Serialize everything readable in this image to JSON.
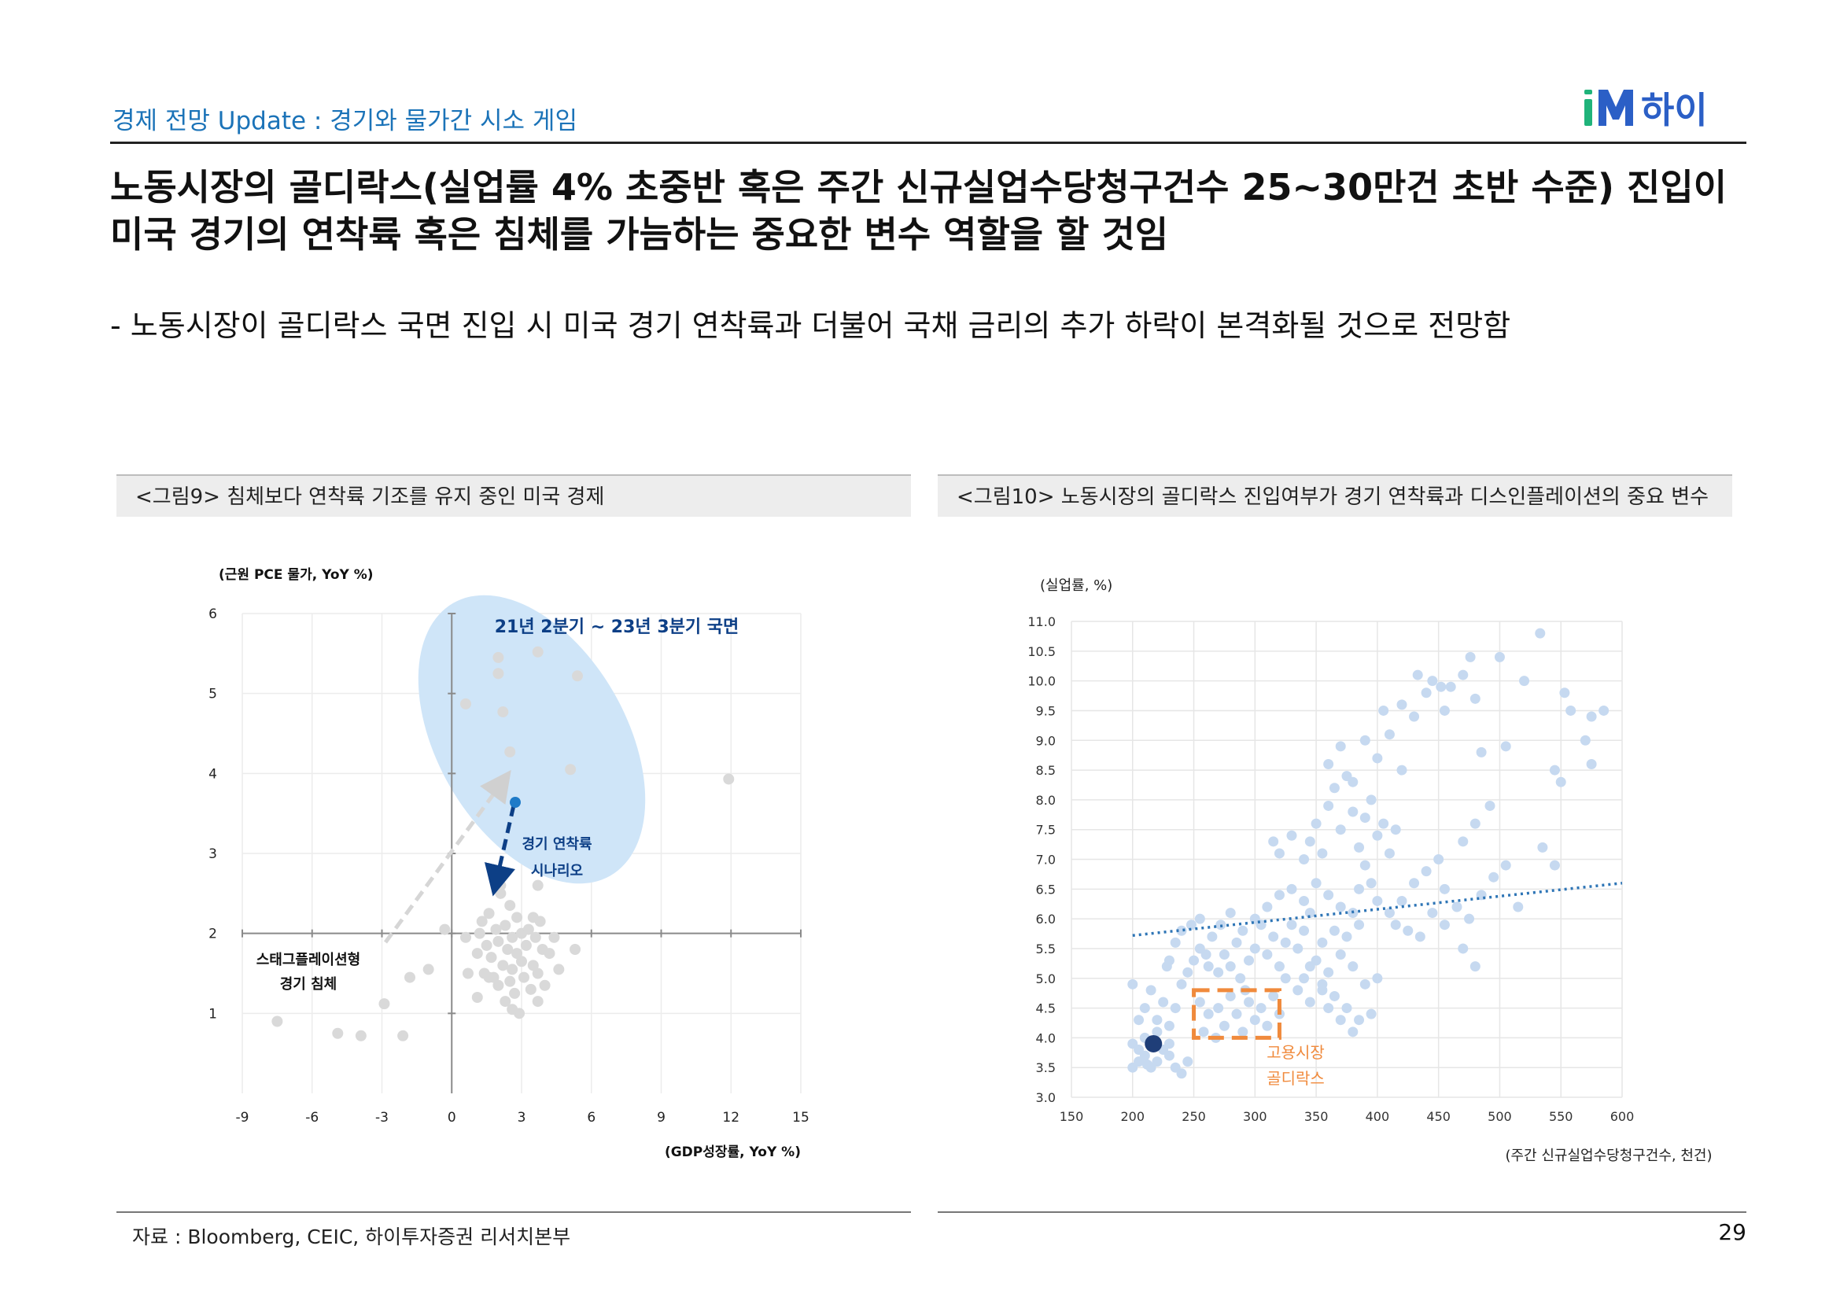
{
  "header": {
    "section_title": "경제 전망 Update : 경기와 물가간 시소 게임",
    "logo_text": "iM하이",
    "colors": {
      "accent": "#1b73b8",
      "logo_green": "#1fb37a",
      "logo_blue": "#2b5fc6"
    }
  },
  "headline": "노동시장의 골디락스(실업률 4% 초중반 혹은 주간 신규실업수당청구건수 25~30만건 초반 수준) 진입이 미국 경기의 연착륙 혹은 침체를 가늠하는 중요한 변수 역할을 할 것임",
  "bullet": "- 노동시장이 골디락스 국면 진입 시 미국 경기 연착륙과 더불어 국채 금리의 추가 하락이 본격화될 것으로 전망함",
  "figures": {
    "left_title": "<그림9> 침체보다 연착륙 기조를 유지 중인 미국 경제",
    "right_title": "<그림10> 노동시장의 골디락스 진입여부가 경기 연착륙과 디스인플레이션의 중요 변수"
  },
  "footer": {
    "source": "자료 : Bloomberg, CEIC, 하이투자증권 리서치본부",
    "page": "29"
  },
  "chart_data": [
    {
      "type": "scatter",
      "ylabel": "(근원 PCE 물가, YoY %)",
      "xlabel": "(GDP성장률, YoY %)",
      "xlim": [
        -9,
        15
      ],
      "ylim": [
        0,
        6
      ],
      "x_ticks": [
        -9,
        -6,
        -3,
        0,
        3,
        6,
        9,
        12,
        15
      ],
      "y_ticks": [
        1,
        2,
        3,
        4,
        5,
        6
      ],
      "grid": true,
      "point_color": "#d9d9d9",
      "highlight_color": "#cfe5f8",
      "arrow_color": "#0d3f86",
      "annotations": {
        "regime": "21년 2분기 ~ 23년 3분기 국면",
        "soft_landing": [
          "경기 연착륙",
          "시나리오"
        ],
        "stagflation": [
          "스태그플레이션형",
          "경기 침체"
        ]
      },
      "series": [
        {
          "points": [
            [
              -7.5,
              0.9
            ],
            [
              -4.9,
              0.75
            ],
            [
              -3.9,
              0.72
            ],
            [
              -2.1,
              0.72
            ],
            [
              -2.9,
              1.12
            ],
            [
              -1.8,
              1.45
            ],
            [
              -1.0,
              1.55
            ],
            [
              -0.3,
              2.05
            ],
            [
              0.6,
              1.95
            ],
            [
              0.7,
              1.5
            ],
            [
              1.1,
              1.2
            ],
            [
              1.1,
              1.75
            ],
            [
              1.2,
              2.0
            ],
            [
              1.3,
              2.15
            ],
            [
              1.4,
              1.5
            ],
            [
              1.5,
              1.85
            ],
            [
              1.6,
              2.25
            ],
            [
              1.7,
              1.7
            ],
            [
              1.8,
              1.45
            ],
            [
              1.9,
              2.05
            ],
            [
              2.0,
              1.35
            ],
            [
              2.0,
              1.9
            ],
            [
              2.1,
              2.5
            ],
            [
              2.2,
              1.6
            ],
            [
              2.3,
              2.1
            ],
            [
              2.3,
              1.15
            ],
            [
              2.4,
              1.8
            ],
            [
              2.5,
              2.35
            ],
            [
              2.5,
              1.4
            ],
            [
              2.6,
              1.95
            ],
            [
              2.6,
              1.55
            ],
            [
              2.7,
              1.25
            ],
            [
              2.8,
              2.2
            ],
            [
              2.8,
              1.75
            ],
            [
              2.9,
              1.0
            ],
            [
              3.0,
              1.65
            ],
            [
              3.0,
              2.0
            ],
            [
              3.1,
              1.45
            ],
            [
              3.2,
              1.85
            ],
            [
              3.3,
              2.05
            ],
            [
              3.4,
              1.3
            ],
            [
              3.5,
              2.2
            ],
            [
              3.5,
              1.6
            ],
            [
              3.6,
              1.95
            ],
            [
              3.7,
              1.5
            ],
            [
              3.8,
              2.15
            ],
            [
              3.9,
              1.8
            ],
            [
              4.0,
              1.35
            ],
            [
              4.2,
              1.75
            ],
            [
              4.4,
              1.95
            ],
            [
              4.6,
              1.55
            ],
            [
              5.3,
              1.8
            ],
            [
              3.7,
              1.15
            ],
            [
              2.1,
              2.6
            ],
            [
              3.7,
              2.6
            ],
            [
              2.6,
              1.05
            ],
            [
              1.6,
              1.45
            ],
            [
              2.0,
              5.45
            ],
            [
              3.7,
              5.52
            ],
            [
              2.0,
              5.25
            ],
            [
              5.4,
              5.22
            ],
            [
              0.6,
              4.87
            ],
            [
              2.2,
              4.77
            ],
            [
              2.5,
              4.27
            ],
            [
              5.1,
              4.05
            ],
            [
              11.9,
              3.93
            ]
          ]
        }
      ],
      "scenario_point": [
        2.7,
        3.72
      ]
    },
    {
      "type": "scatter",
      "ylabel": "(실업률, %)",
      "xlabel": "(주간 신규실업수당청구건수, 천건)",
      "xlim": [
        150,
        600
      ],
      "ylim": [
        3.0,
        11.0
      ],
      "x_ticks": [
        "150",
        "200",
        "250",
        "300",
        "350",
        "400",
        "450",
        "500",
        "550",
        "600"
      ],
      "y_ticks": [
        "3.0",
        "3.5",
        "4.0",
        "4.5",
        "5.0",
        "5.5",
        "6.0",
        "6.5",
        "7.0",
        "7.5",
        "8.0",
        "8.5",
        "9.0",
        "9.5",
        "10.0",
        "10.5",
        "11.0"
      ],
      "grid": true,
      "point_color": "#c6d9f0",
      "trendline": {
        "x": [
          200,
          600
        ],
        "y": [
          5.72,
          6.6
        ],
        "color": "#2e75b6"
      },
      "highlight_point": {
        "x": 217,
        "y": 3.9,
        "color": "#1f3e78"
      },
      "goldilocks_box": {
        "x": [
          250,
          320
        ],
        "y": [
          4.0,
          4.8
        ],
        "color": "#f08a3c",
        "label": [
          "고용시장",
          "골디락스"
        ]
      },
      "series": [
        {
          "points": [
            [
              200,
              3.5
            ],
            [
              205,
              3.6
            ],
            [
              210,
              3.7
            ],
            [
              205,
              3.8
            ],
            [
              215,
              3.5
            ],
            [
              220,
              3.6
            ],
            [
              225,
              3.8
            ],
            [
              230,
              3.7
            ],
            [
              200,
              3.9
            ],
            [
              210,
              4.0
            ],
            [
              220,
              4.1
            ],
            [
              230,
              3.9
            ],
            [
              212,
              3.55
            ],
            [
              235,
              3.5
            ],
            [
              240,
              3.4
            ],
            [
              245,
              3.6
            ],
            [
              205,
              4.3
            ],
            [
              210,
              4.5
            ],
            [
              200,
              4.9
            ],
            [
              215,
              4.8
            ],
            [
              220,
              4.3
            ],
            [
              225,
              4.6
            ],
            [
              230,
              4.2
            ],
            [
              235,
              4.5
            ],
            [
              240,
              4.9
            ],
            [
              245,
              5.1
            ],
            [
              250,
              5.3
            ],
            [
              255,
              5.5
            ],
            [
              260,
              5.4
            ],
            [
              265,
              5.7
            ],
            [
              235,
              5.6
            ],
            [
              228,
              5.2
            ],
            [
              255,
              4.6
            ],
            [
              262,
              4.4
            ],
            [
              270,
              4.5
            ],
            [
              275,
              4.2
            ],
            [
              280,
              4.7
            ],
            [
              285,
              4.4
            ],
            [
              290,
              4.1
            ],
            [
              295,
              4.6
            ],
            [
              300,
              4.3
            ],
            [
              305,
              4.5
            ],
            [
              310,
              4.2
            ],
            [
              315,
              4.7
            ],
            [
              320,
              4.4
            ],
            [
              258,
              4.1
            ],
            [
              268,
              4.0
            ],
            [
              292,
              4.8
            ],
            [
              270,
              5.1
            ],
            [
              275,
              5.4
            ],
            [
              280,
              5.2
            ],
            [
              285,
              5.6
            ],
            [
              290,
              5.8
            ],
            [
              295,
              5.3
            ],
            [
              300,
              5.5
            ],
            [
              305,
              5.9
            ],
            [
              310,
              5.4
            ],
            [
              315,
              5.7
            ],
            [
              320,
              5.2
            ],
            [
              325,
              5.6
            ],
            [
              330,
              5.9
            ],
            [
              335,
              5.5
            ],
            [
              340,
              5.8
            ],
            [
              345,
              6.1
            ],
            [
              300,
              6.0
            ],
            [
              310,
              6.2
            ],
            [
              320,
              6.4
            ],
            [
              330,
              6.5
            ],
            [
              340,
              6.3
            ],
            [
              350,
              6.6
            ],
            [
              360,
              6.4
            ],
            [
              370,
              6.2
            ],
            [
              325,
              5.0
            ],
            [
              335,
              4.8
            ],
            [
              345,
              4.6
            ],
            [
              355,
              4.9
            ],
            [
              365,
              4.7
            ],
            [
              375,
              4.5
            ],
            [
              385,
              4.3
            ],
            [
              395,
              4.4
            ],
            [
              350,
              5.3
            ],
            [
              355,
              5.6
            ],
            [
              360,
              5.1
            ],
            [
              365,
              5.8
            ],
            [
              370,
              5.4
            ],
            [
              375,
              5.7
            ],
            [
              380,
              5.2
            ],
            [
              385,
              5.9
            ],
            [
              340,
              7.0
            ],
            [
              345,
              7.3
            ],
            [
              350,
              7.6
            ],
            [
              355,
              7.1
            ],
            [
              360,
              7.9
            ],
            [
              365,
              8.2
            ],
            [
              370,
              7.5
            ],
            [
              375,
              8.4
            ],
            [
              380,
              7.8
            ],
            [
              385,
              7.2
            ],
            [
              390,
              7.7
            ],
            [
              395,
              8.0
            ],
            [
              400,
              7.4
            ],
            [
              405,
              7.6
            ],
            [
              410,
              7.1
            ],
            [
              415,
              7.5
            ],
            [
              360,
              8.6
            ],
            [
              370,
              8.9
            ],
            [
              380,
              8.3
            ],
            [
              390,
              9.0
            ],
            [
              400,
              8.7
            ],
            [
              410,
              9.1
            ],
            [
              420,
              8.5
            ],
            [
              405,
              9.5
            ],
            [
              420,
              9.6
            ],
            [
              430,
              9.4
            ],
            [
              440,
              9.8
            ],
            [
              445,
              10.0
            ],
            [
              455,
              9.5
            ],
            [
              460,
              9.9
            ],
            [
              470,
              10.1
            ],
            [
              480,
              9.7
            ],
            [
              433,
              10.1
            ],
            [
              452,
              9.9
            ],
            [
              476,
              10.4
            ],
            [
              500,
              10.4
            ],
            [
              533,
              10.8
            ],
            [
              520,
              10.0
            ],
            [
              553,
              9.8
            ],
            [
              558,
              9.5
            ],
            [
              575,
              9.4
            ],
            [
              585,
              9.5
            ],
            [
              570,
              9.0
            ],
            [
              505,
              8.9
            ],
            [
              485,
              8.8
            ],
            [
              545,
              8.5
            ],
            [
              550,
              8.3
            ],
            [
              575,
              8.6
            ],
            [
              492,
              7.9
            ],
            [
              480,
              7.6
            ],
            [
              470,
              7.3
            ],
            [
              450,
              7.0
            ],
            [
              440,
              6.8
            ],
            [
              430,
              6.6
            ],
            [
              420,
              6.3
            ],
            [
              410,
              6.1
            ],
            [
              455,
              6.5
            ],
            [
              465,
              6.2
            ],
            [
              475,
              6.0
            ],
            [
              485,
              6.4
            ],
            [
              495,
              6.7
            ],
            [
              505,
              6.9
            ],
            [
              535,
              7.2
            ],
            [
              545,
              6.9
            ],
            [
              515,
              6.2
            ],
            [
              470,
              5.5
            ],
            [
              480,
              5.2
            ],
            [
              455,
              5.9
            ],
            [
              445,
              6.1
            ],
            [
              425,
              5.8
            ],
            [
              435,
              5.7
            ],
            [
              415,
              5.9
            ],
            [
              400,
              6.3
            ],
            [
              395,
              6.6
            ],
            [
              390,
              6.9
            ],
            [
              385,
              6.5
            ],
            [
              380,
              6.1
            ],
            [
              330,
              7.4
            ],
            [
              320,
              7.1
            ],
            [
              315,
              7.3
            ],
            [
              340,
              5.0
            ],
            [
              345,
              5.2
            ],
            [
              355,
              4.8
            ],
            [
              360,
              4.5
            ],
            [
              370,
              4.3
            ],
            [
              380,
              4.1
            ],
            [
              390,
              4.9
            ],
            [
              400,
              5.0
            ],
            [
              230,
              5.3
            ],
            [
              240,
              5.8
            ],
            [
              248,
              5.9
            ],
            [
              255,
              6.0
            ],
            [
              262,
              5.2
            ],
            [
              272,
              5.9
            ],
            [
              280,
              6.1
            ],
            [
              288,
              5.0
            ]
          ]
        }
      ]
    }
  ]
}
